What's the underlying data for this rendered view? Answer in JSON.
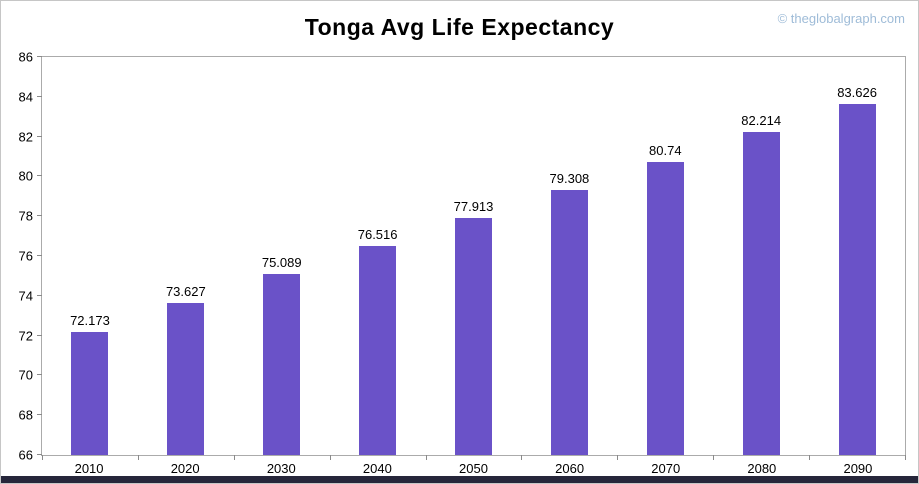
{
  "header": {
    "title": "Tonga Avg Life Expectancy",
    "copyright": "© theglobalgraph.com"
  },
  "chart_data": {
    "type": "bar",
    "title": "Tonga Avg Life Expectancy",
    "categories": [
      "2010",
      "2020",
      "2030",
      "2040",
      "2050",
      "2060",
      "2070",
      "2080",
      "2090"
    ],
    "values": [
      72.173,
      73.627,
      75.089,
      76.516,
      77.913,
      79.308,
      80.74,
      82.214,
      83.626
    ],
    "value_labels": [
      "72.173",
      "73.627",
      "75.089",
      "76.516",
      "77.913",
      "79.308",
      "80.74",
      "82.214",
      "83.626"
    ],
    "xlabel": "",
    "ylabel": "",
    "ylim": [
      66,
      86
    ],
    "ytick_step": 2,
    "bar_color": "#6a52c8",
    "grid": false,
    "legend_position": "none"
  }
}
